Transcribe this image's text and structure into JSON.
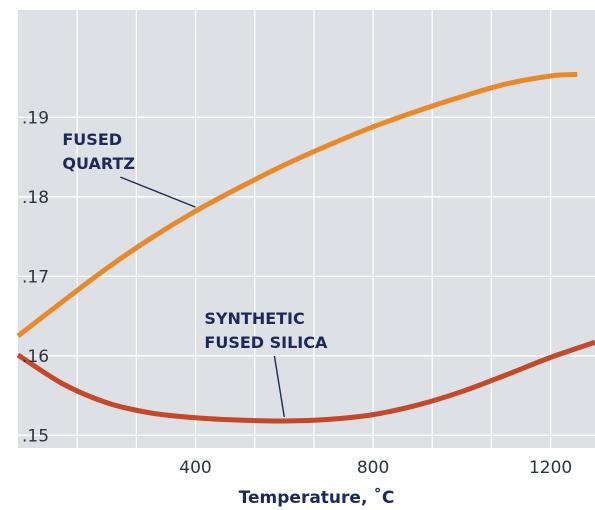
{
  "chart_data": {
    "type": "line",
    "title": "",
    "xlabel": "Temperature, ˚C",
    "ylabel": "",
    "xlim": [
      0,
      1300
    ],
    "ylim": [
      0.1484,
      0.2035
    ],
    "x_ticks": [
      400,
      800,
      1200
    ],
    "x_tick_labels": [
      "400",
      "800",
      "1200"
    ],
    "y_ticks": [
      0.15,
      0.16,
      0.17,
      0.18,
      0.19
    ],
    "y_tick_labels": [
      ".15",
      ".16",
      ".17",
      ".18",
      ".19"
    ],
    "x_minor_gridlines": [
      133.3,
      266.7,
      400,
      533.3,
      666.7,
      800,
      933.3,
      1066.7,
      1200
    ],
    "grid": true,
    "background_color": "#dde0e4",
    "series": [
      {
        "name": "",
        "color": "#e88a2c",
        "x": [
          0,
          100,
          200,
          300,
          400,
          500,
          600,
          700,
          800,
          900,
          1000,
          1100,
          1200,
          1260
        ],
        "y": [
          0.1625,
          0.1668,
          0.171,
          0.1748,
          0.1782,
          0.1812,
          0.184,
          0.1865,
          0.1888,
          0.1908,
          0.1926,
          0.1942,
          0.1952,
          0.1954
        ]
      },
      {
        "name": "",
        "color": "#c4482a",
        "x": [
          0,
          100,
          200,
          300,
          400,
          500,
          600,
          700,
          800,
          900,
          1000,
          1100,
          1200,
          1300
        ],
        "y": [
          0.1601,
          0.1565,
          0.1541,
          0.1528,
          0.1522,
          0.1519,
          0.1518,
          0.152,
          0.1526,
          0.1538,
          0.1555,
          0.1576,
          0.1598,
          0.1617
        ]
      }
    ],
    "annotations": [
      {
        "lines": [
          "FUSED",
          "QUARTZ"
        ],
        "x": 100,
        "y": 0.1865,
        "target_x": 400,
        "target_y": 0.1782
      },
      {
        "lines": [
          "SYNTHETIC",
          "FUSED SILICA"
        ],
        "x": 420,
        "y": 0.164,
        "target_x": 600,
        "target_y": 0.1518
      }
    ]
  }
}
